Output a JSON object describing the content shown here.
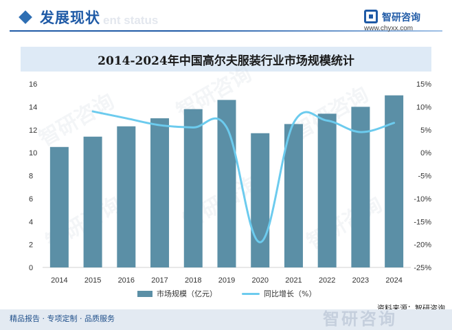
{
  "header": {
    "title": "发展现状",
    "ghost_text": "ent status"
  },
  "brand": {
    "name": "智研咨询",
    "url": "www.chyxx.com"
  },
  "watermark_text": "智研咨询",
  "footer": {
    "text": "精品报告 · 专项定制 · 品质服务",
    "logo_text": "智研咨询"
  },
  "source": "资料来源：智研咨询",
  "colors": {
    "bar": "#5b8fa6",
    "line": "#6ccbee",
    "title_band": "#deeaf6",
    "header_blue": "#1f5aa6"
  },
  "chart_data": {
    "type": "bar",
    "title": "2014-2024年中国高尔夫服装行业市场规模统计",
    "categories": [
      "2014",
      "2015",
      "2016",
      "2017",
      "2018",
      "2019",
      "2020",
      "2021",
      "2022",
      "2023",
      "2024"
    ],
    "series": [
      {
        "name": "市场规模（亿元）",
        "type": "bar",
        "axis": "left",
        "values": [
          10.5,
          11.4,
          12.3,
          13.0,
          13.8,
          14.6,
          11.7,
          12.5,
          13.4,
          14.0,
          15.0
        ]
      },
      {
        "name": "同比增长（%）",
        "type": "line",
        "axis": "right",
        "values": [
          null,
          9.0,
          7.5,
          6.0,
          5.5,
          5.5,
          -19.5,
          6.5,
          7.0,
          4.5,
          6.5
        ]
      }
    ],
    "y_left": {
      "min": 0,
      "max": 16,
      "ticks": [
        0,
        2,
        4,
        6,
        8,
        10,
        12,
        14,
        16
      ]
    },
    "y_right": {
      "min": -25,
      "max": 15,
      "ticks": [
        15,
        10,
        5,
        0,
        -5,
        -10,
        -15,
        -20,
        -25
      ],
      "tick_labels": [
        "15%",
        "10%",
        "5%",
        "0%",
        "-5%",
        "-10%",
        "-15%",
        "-20%",
        "-25%"
      ]
    },
    "legend_position": "bottom",
    "grid": false
  }
}
